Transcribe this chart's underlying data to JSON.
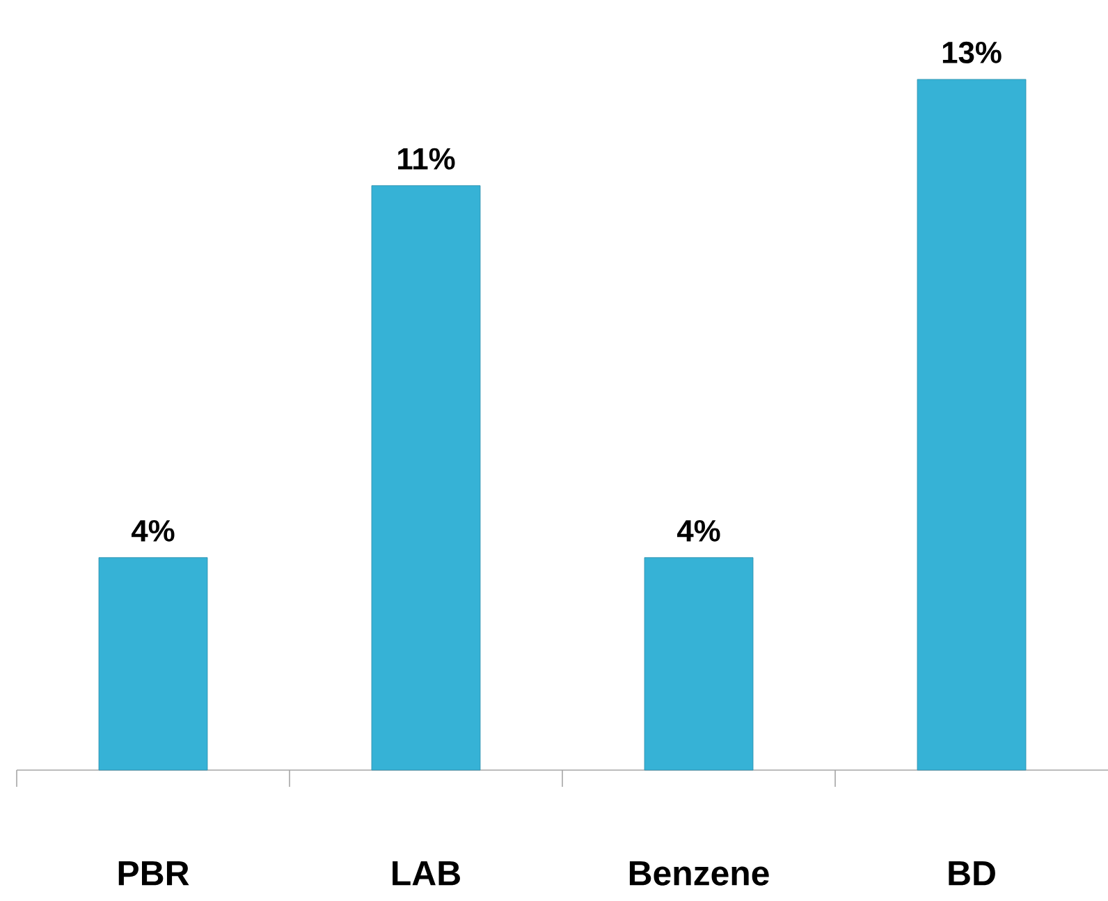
{
  "chart_data": {
    "type": "bar",
    "categories": [
      "PBR",
      "LAB",
      "Benzene",
      "BD"
    ],
    "values": [
      4,
      11,
      4,
      13
    ],
    "value_labels": [
      "4%",
      "11%",
      "4%",
      "13%"
    ],
    "color": "#36b2d6",
    "ylim": [
      0,
      13
    ],
    "grid": false
  }
}
